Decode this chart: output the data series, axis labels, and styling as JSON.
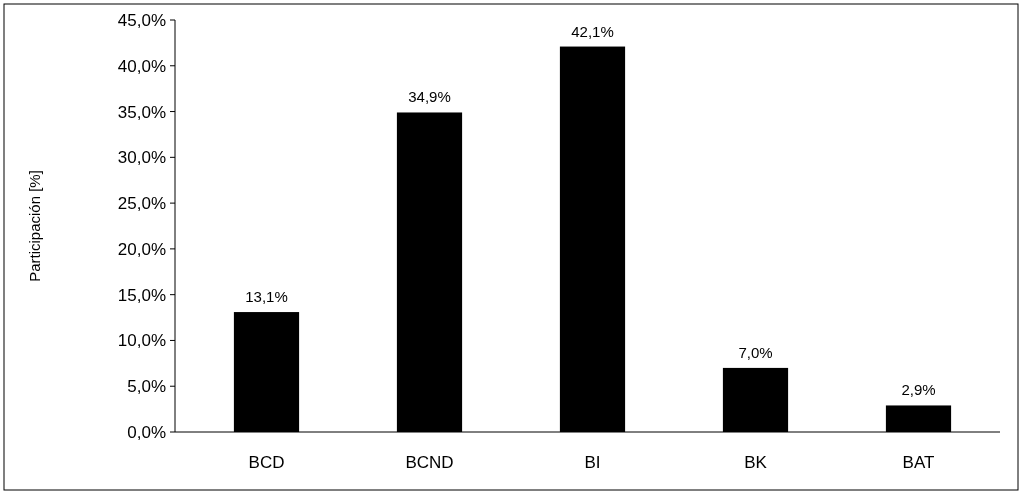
{
  "chart_data": {
    "type": "bar",
    "ylabel": "Participación [%]",
    "categories": [
      "BCD",
      "BCND",
      "BI",
      "BK",
      "BAT"
    ],
    "values": [
      13.1,
      34.9,
      42.1,
      7.0,
      2.9
    ],
    "value_labels": [
      "13,1%",
      "34,9%",
      "42,1%",
      "7,0%",
      "2,9%"
    ],
    "color": "#000000",
    "ylim": [
      0,
      45
    ],
    "yticks": [
      {
        "value": 0,
        "label": "0,0%"
      },
      {
        "value": 5,
        "label": "5,0%"
      },
      {
        "value": 10,
        "label": "10,0%"
      },
      {
        "value": 15,
        "label": "15,0%"
      },
      {
        "value": 20,
        "label": "20,0%"
      },
      {
        "value": 25,
        "label": "25,0%"
      },
      {
        "value": 30,
        "label": "30,0%"
      },
      {
        "value": 35,
        "label": "35,0%"
      },
      {
        "value": 40,
        "label": "40,0%"
      },
      {
        "value": 45,
        "label": "45,0%"
      }
    ],
    "orientation": "vertical"
  }
}
